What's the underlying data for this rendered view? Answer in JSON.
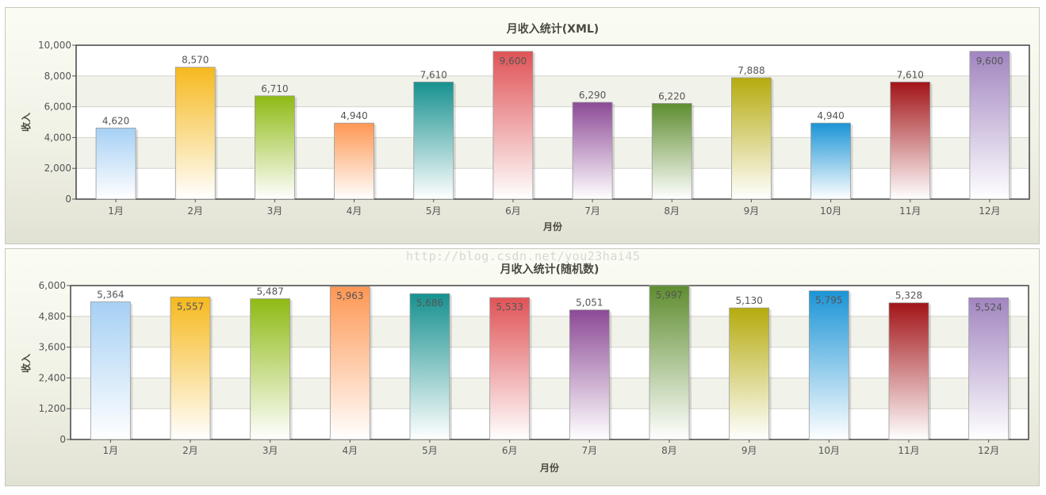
{
  "chart_data": [
    {
      "type": "bar",
      "title": "月收入统计(XML)",
      "xlabel": "月份",
      "ylabel": "收入",
      "ylim": [
        0,
        10000
      ],
      "yticks": [
        "0",
        "2,000",
        "4,000",
        "6,000",
        "8,000",
        "10,000"
      ],
      "categories": [
        "1月",
        "2月",
        "3月",
        "4月",
        "5月",
        "6月",
        "7月",
        "8月",
        "9月",
        "10月",
        "11月",
        "12月"
      ],
      "values": [
        4620,
        8570,
        6710,
        4940,
        7610,
        9600,
        6290,
        6220,
        7888,
        4940,
        7610,
        9600
      ],
      "value_labels": [
        "4,620",
        "8,570",
        "6,710",
        "4,940",
        "7,610",
        "9,600",
        "6,290",
        "6,220",
        "7,888",
        "4,940",
        "7,610",
        "9,600"
      ],
      "grid": true,
      "legend": "none"
    },
    {
      "type": "bar",
      "title": "月收入统计(随机数)",
      "xlabel": "月份",
      "ylabel": "收入",
      "ylim": [
        0,
        6000
      ],
      "yticks": [
        "0",
        "1,200",
        "2,400",
        "3,600",
        "4,800",
        "6,000"
      ],
      "categories": [
        "1月",
        "2月",
        "3月",
        "4月",
        "5月",
        "6月",
        "7月",
        "8月",
        "9月",
        "10月",
        "11月",
        "12月"
      ],
      "values": [
        5364,
        5557,
        5487,
        5963,
        5686,
        5533,
        5051,
        5997,
        5130,
        5795,
        5328,
        5524
      ],
      "value_labels": [
        "5,364",
        "5,557",
        "5,487",
        "5,963",
        "5,686",
        "5,533",
        "5,051",
        "5,997",
        "5,130",
        "5,795",
        "5,328",
        "5,524"
      ],
      "grid": true,
      "legend": "none"
    }
  ],
  "bar_colors": [
    "#a6d0f4",
    "#f6b91e",
    "#8fba14",
    "#fe9753",
    "#16918f",
    "#e05356",
    "#8c4a96",
    "#5e8d2f",
    "#b5ab0e",
    "#1b94d6",
    "#a21418",
    "#a185c0"
  ],
  "watermark": "http://blog.csdn.net/you23hai45"
}
